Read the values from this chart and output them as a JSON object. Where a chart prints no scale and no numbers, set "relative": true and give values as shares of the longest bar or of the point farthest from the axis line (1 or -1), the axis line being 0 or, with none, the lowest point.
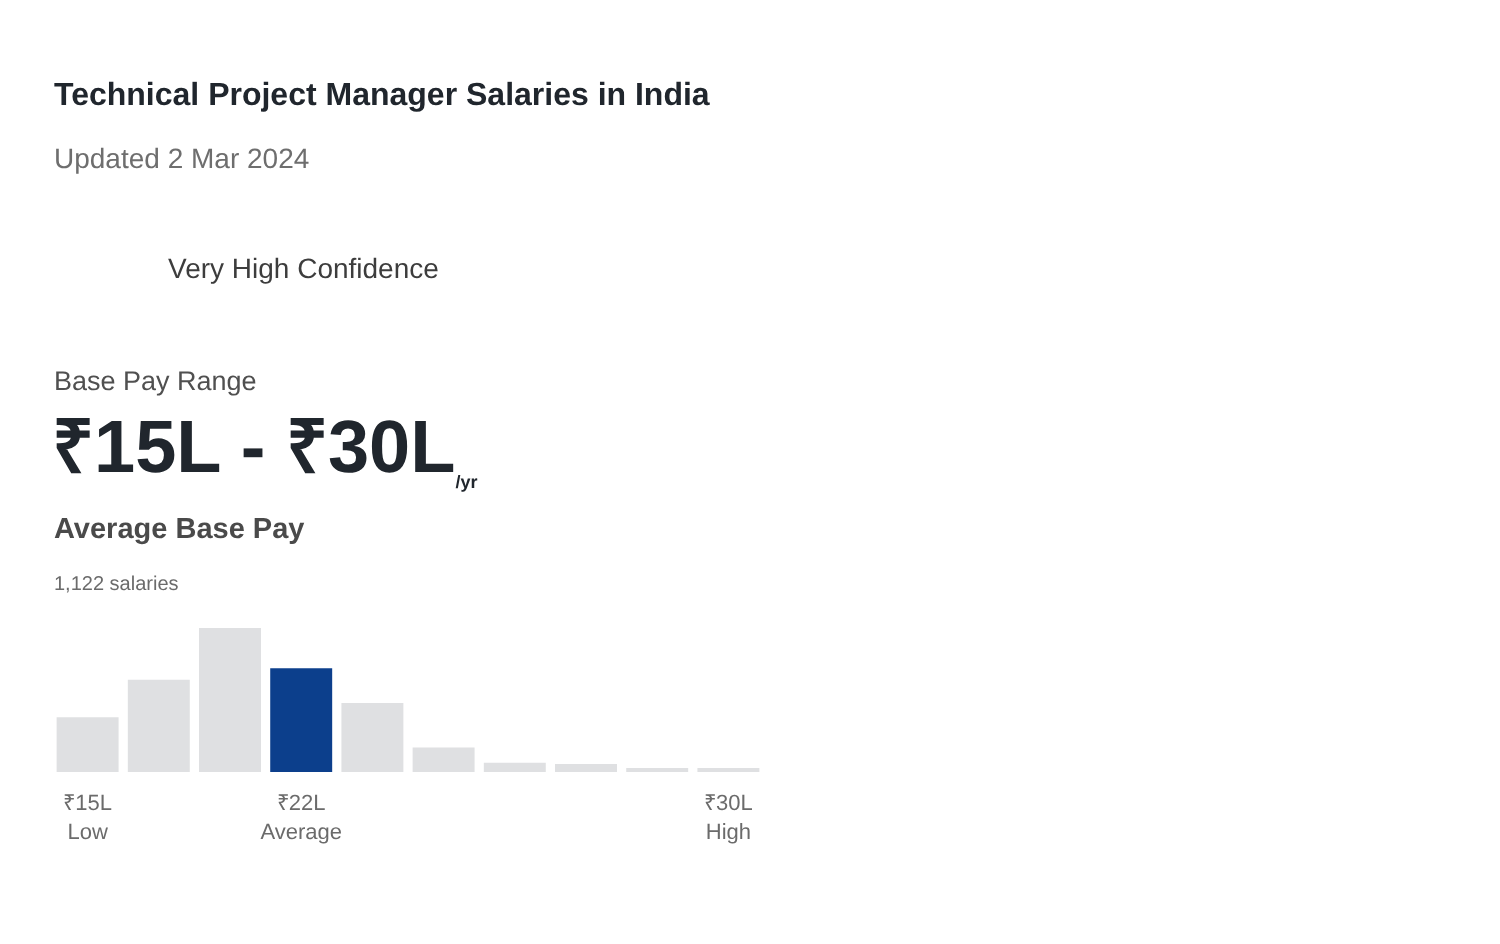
{
  "chart_data": {
    "type": "bar",
    "title": "Technical Project Manager Salaries in India",
    "subtitle": "Updated 2 Mar 2024",
    "annotations": [
      "Very High Confidence",
      "Base Pay Range",
      "₹15L - ₹30L$_{/yr}$",
      "Average Base Pay",
      "1,122 salaries"
    ],
    "relative": true,
    "categories": [
      "₹15L\nLow",
      null,
      null,
      "₹22L\nAverage",
      null,
      null,
      null,
      null,
      null,
      "₹30L\nHigh"
    ],
    "values": [
      0.38,
      0.64,
      1,
      0.72,
      0.48,
      0.17,
      0.065,
      0.055,
      0.02,
      0.02
    ],
    "colors": [
      "#dfe0e2",
      "#dfe0e2",
      "#dfe0e2",
      "#0c3f8c",
      "#dfe0e2",
      "#dfe0e2",
      "#dfe0e2",
      "#dfe0e2",
      "#dfe0e2",
      "#dfe0e2"
    ]
  }
}
